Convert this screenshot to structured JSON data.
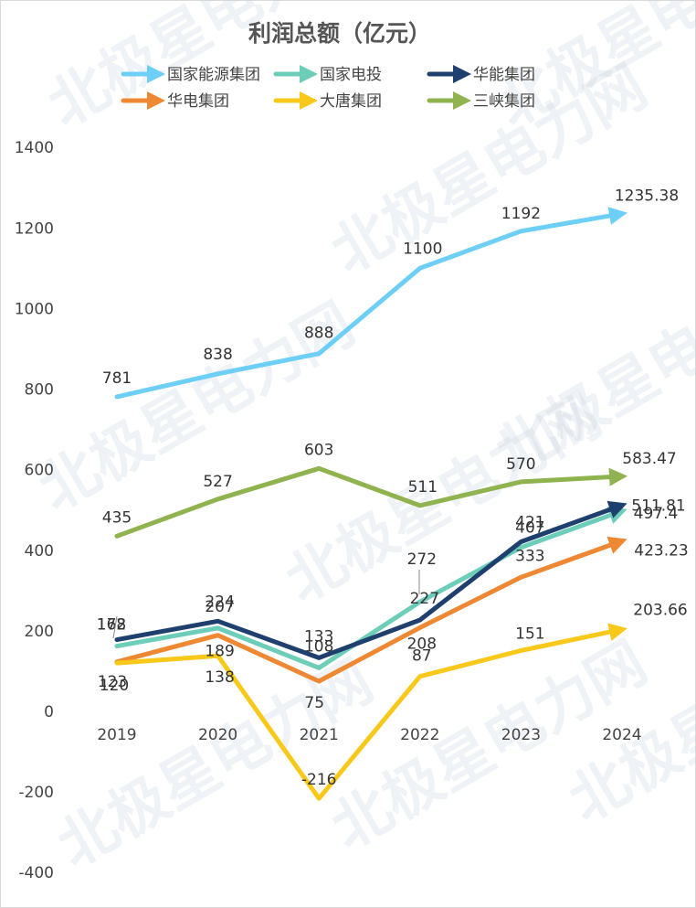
{
  "chart_data": {
    "type": "line",
    "title": "利润总额（亿元）",
    "categories": [
      "2019",
      "2020",
      "2021",
      "2022",
      "2023",
      "2024"
    ],
    "yticks": [
      -400,
      -200,
      0,
      200,
      400,
      600,
      800,
      1000,
      1200,
      1400
    ],
    "ylim": [
      -400,
      1400
    ],
    "grid": false,
    "legend_position": "top",
    "series": [
      {
        "name": "国家能源集团",
        "color": "#6ecff6",
        "values": [
          781,
          838,
          888,
          1100,
          1192,
          1235.38
        ],
        "labels": [
          "781",
          "838",
          "888",
          "1100",
          "1192",
          "1235.38"
        ]
      },
      {
        "name": "国家电投",
        "color": "#6ccdb8",
        "values": [
          162,
          207,
          108,
          272,
          407,
          497.4
        ],
        "labels": [
          "162",
          "207",
          "108",
          "272",
          "407",
          "497.4"
        ]
      },
      {
        "name": "华能集团",
        "color": "#1f3f6e",
        "values": [
          178,
          224,
          133,
          227,
          421,
          511.81
        ],
        "labels": [
          "178",
          "224",
          "133",
          "227",
          "421",
          "511.81"
        ]
      },
      {
        "name": "华电集团",
        "color": "#ee8833",
        "values": [
          123,
          189,
          75,
          208,
          333,
          423.23
        ],
        "labels": [
          "123",
          "189",
          "75",
          "208",
          "333",
          "423.23"
        ]
      },
      {
        "name": "大唐集团",
        "color": "#f8c81b",
        "values": [
          120,
          138,
          -216,
          87,
          151,
          203.66
        ],
        "labels": [
          "120",
          "138",
          "-216",
          "87",
          "151",
          "203.66"
        ]
      },
      {
        "name": "三峡集团",
        "color": "#8fb34e",
        "values": [
          435,
          527,
          603,
          511,
          570,
          583.47
        ],
        "labels": [
          "435",
          "527",
          "603",
          "511",
          "570",
          "583.47"
        ]
      }
    ]
  },
  "watermark": {
    "text": "北极星电力网"
  }
}
